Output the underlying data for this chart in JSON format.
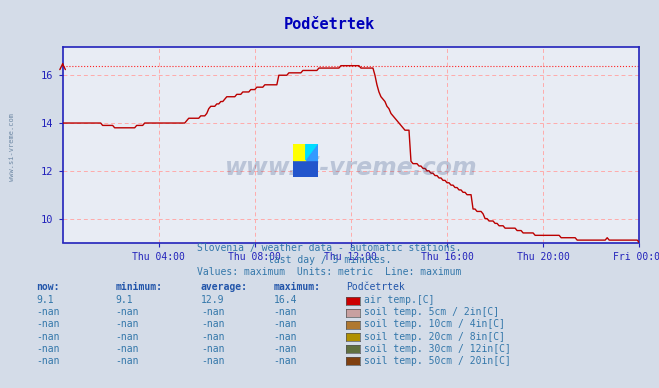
{
  "title": "Podčetrtek",
  "background_color": "#d4dce8",
  "plot_bg_color": "#e8ecf4",
  "line_color": "#bb0000",
  "dotted_line_color": "#ff2222",
  "grid_color": "#ffaaaa",
  "axis_color": "#2222bb",
  "text_color": "#3377aa",
  "subtitle1": "Slovenia / weather data - automatic stations.",
  "subtitle2": "last day / 5 minutes.",
  "subtitle3": "Values: maximum  Units: metric  Line: maximum",
  "ylim": [
    9.0,
    17.2
  ],
  "yticks": [
    10,
    12,
    14,
    16
  ],
  "ylabel_max_line": 16.4,
  "x_labels": [
    "Thu 04:00",
    "Thu 08:00",
    "Thu 12:00",
    "Thu 16:00",
    "Thu 20:00",
    "Fri 00:00"
  ],
  "watermark": "www.si-vreme.com",
  "legend_items": [
    {
      "label": "air temp.[C]",
      "color": "#cc0000"
    },
    {
      "label": "soil temp. 5cm / 2in[C]",
      "color": "#c8a0a0"
    },
    {
      "label": "soil temp. 10cm / 4in[C]",
      "color": "#b07830"
    },
    {
      "label": "soil temp. 20cm / 8in[C]",
      "color": "#b09000"
    },
    {
      "label": "soil temp. 30cm / 12in[C]",
      "color": "#607040"
    },
    {
      "label": "soil temp. 50cm / 20in[C]",
      "color": "#804010"
    }
  ],
  "table_headers": [
    "now:",
    "minimum:",
    "average:",
    "maximum:",
    "Podčetrtek"
  ],
  "table_rows": [
    [
      "9.1",
      "9.1",
      "12.9",
      "16.4"
    ],
    [
      "-nan",
      "-nan",
      "-nan",
      "-nan"
    ],
    [
      "-nan",
      "-nan",
      "-nan",
      "-nan"
    ],
    [
      "-nan",
      "-nan",
      "-nan",
      "-nan"
    ],
    [
      "-nan",
      "-nan",
      "-nan",
      "-nan"
    ],
    [
      "-nan",
      "-nan",
      "-nan",
      "-nan"
    ]
  ]
}
